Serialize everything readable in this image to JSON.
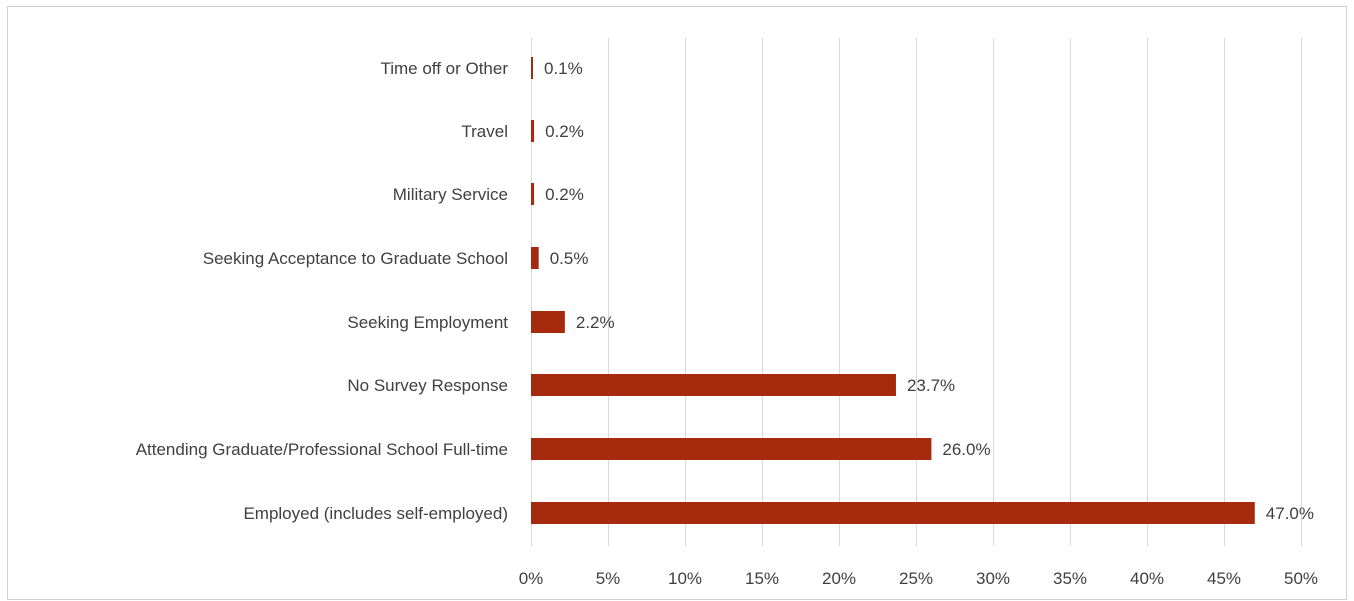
{
  "header_fragment": "",
  "chart_data": {
    "type": "bar",
    "orientation": "horizontal",
    "title": "",
    "xlabel": "",
    "ylabel": "",
    "categories": [
      "Employed (includes self-employed)",
      "Attending Graduate/Professional School Full-time",
      "No Survey Response",
      "Seeking Employment",
      "Seeking Acceptance to Graduate School",
      "Military Service",
      "Travel",
      "Time off or Other"
    ],
    "values": [
      47.0,
      26.0,
      23.7,
      2.2,
      0.5,
      0.2,
      0.2,
      0.1
    ],
    "value_labels": [
      "47.0%",
      "26.0%",
      "23.7%",
      "2.2%",
      "0.5%",
      "0.2%",
      "0.2%",
      "0.1%"
    ],
    "xlim": [
      0,
      50
    ],
    "x_ticks": [
      0,
      5,
      10,
      15,
      20,
      25,
      30,
      35,
      40,
      45,
      50
    ],
    "x_tick_labels": [
      "0%",
      "5%",
      "10%",
      "15%",
      "20%",
      "25%",
      "30%",
      "35%",
      "40%",
      "45%",
      "50%"
    ],
    "grid": "vertical",
    "legend": "none",
    "bar_color": "#a52a0e",
    "grid_color": "#d9d9d9",
    "text_color": "#404040"
  }
}
